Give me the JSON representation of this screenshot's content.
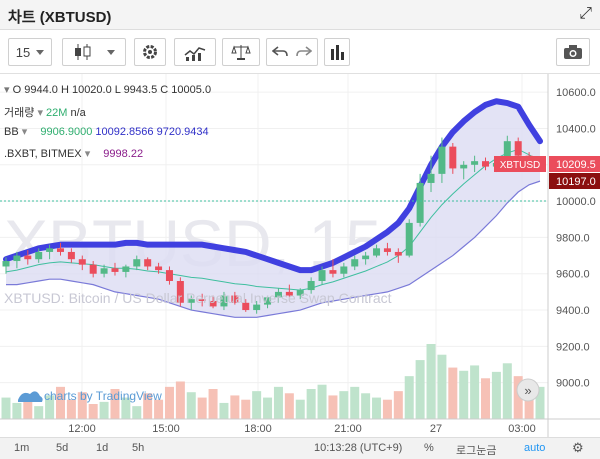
{
  "window": {
    "title": "차트 (XBTUSD)"
  },
  "toolbar": {
    "interval": "15"
  },
  "legend": {
    "ohlc": {
      "o_label": "O",
      "o": "9944.0",
      "h_label": "H",
      "h": "10020.0",
      "l_label": "L",
      "l": "9943.5",
      "c_label": "C",
      "c": "10005.0"
    },
    "volume": {
      "label": "거래량",
      "value": "22M",
      "extra": "n/a"
    },
    "bb": {
      "label": "BB",
      "basis": "9906.9000",
      "upper": "10092.8566",
      "lower": "9720.9434"
    },
    "bxbt": {
      "label": ".BXBT, BITMEX",
      "value": "9998.22"
    }
  },
  "watermark": {
    "symbol": "XBTUSD, 15",
    "description": "XBTUSD: Bitcoin / US Dollar Perpetual Inverse Swap Contract"
  },
  "branding": {
    "text": "charts by TradingView"
  },
  "price_tags": {
    "symbol_label": "XBTUSD",
    "last": "10209.5",
    "index": "10197.0"
  },
  "bottombar": {
    "ranges": [
      "1m",
      "5d",
      "1d",
      "5h"
    ],
    "time": "10:13:28 (UTC+9)",
    "percent": "%",
    "log": "로그눈금",
    "auto": "auto"
  },
  "colors": {
    "up": "#53b987",
    "down": "#eb4d5c",
    "band_fill": "#dcdcf3",
    "band_line": "#7a7ad8",
    "thick_line": "#4040e0",
    "basis": "#3fbf9f"
  },
  "chart_data": {
    "type": "candlestick",
    "y_ticks": [
      9000,
      9200,
      9400,
      9600,
      9800,
      10000,
      10200,
      10400,
      10600
    ],
    "x_ticks": [
      "12:00",
      "15:00",
      "18:00",
      "21:00",
      "27",
      "03:00"
    ],
    "ylim": [
      8800,
      10700
    ],
    "candles": [
      [
        9640,
        9690,
        9600,
        9670
      ],
      [
        9670,
        9720,
        9630,
        9700
      ],
      [
        9700,
        9730,
        9650,
        9680
      ],
      [
        9680,
        9740,
        9660,
        9720
      ],
      [
        9720,
        9760,
        9680,
        9740
      ],
      [
        9740,
        9770,
        9700,
        9720
      ],
      [
        9720,
        9740,
        9660,
        9680
      ],
      [
        9680,
        9700,
        9620,
        9650
      ],
      [
        9650,
        9670,
        9580,
        9600
      ],
      [
        9600,
        9650,
        9580,
        9630
      ],
      [
        9630,
        9660,
        9590,
        9610
      ],
      [
        9610,
        9650,
        9580,
        9640
      ],
      [
        9640,
        9700,
        9620,
        9680
      ],
      [
        9680,
        9690,
        9620,
        9640
      ],
      [
        9640,
        9660,
        9600,
        9620
      ],
      [
        9620,
        9640,
        9540,
        9560
      ],
      [
        9560,
        9580,
        9420,
        9440
      ],
      [
        9440,
        9480,
        9400,
        9460
      ],
      [
        9460,
        9490,
        9420,
        9450
      ],
      [
        9450,
        9480,
        9410,
        9420
      ],
      [
        9420,
        9500,
        9400,
        9480
      ],
      [
        9480,
        9500,
        9430,
        9440
      ],
      [
        9440,
        9460,
        9390,
        9400
      ],
      [
        9400,
        9450,
        9380,
        9430
      ],
      [
        9430,
        9480,
        9410,
        9470
      ],
      [
        9470,
        9520,
        9440,
        9500
      ],
      [
        9500,
        9540,
        9470,
        9480
      ],
      [
        9480,
        9520,
        9460,
        9510
      ],
      [
        9510,
        9580,
        9490,
        9560
      ],
      [
        9560,
        9640,
        9540,
        9620
      ],
      [
        9620,
        9680,
        9580,
        9600
      ],
      [
        9600,
        9660,
        9580,
        9640
      ],
      [
        9640,
        9700,
        9620,
        9680
      ],
      [
        9680,
        9720,
        9650,
        9700
      ],
      [
        9700,
        9760,
        9690,
        9740
      ],
      [
        9740,
        9770,
        9700,
        9720
      ],
      [
        9720,
        9740,
        9660,
        9700
      ],
      [
        9700,
        9900,
        9690,
        9880
      ],
      [
        9880,
        10150,
        9860,
        10100
      ],
      [
        10100,
        10250,
        10050,
        10150
      ],
      [
        10150,
        10350,
        10100,
        10300
      ],
      [
        10300,
        10320,
        10150,
        10180
      ],
      [
        10180,
        10220,
        10120,
        10200
      ],
      [
        10200,
        10250,
        10160,
        10220
      ],
      [
        10220,
        10240,
        10170,
        10190
      ],
      [
        10190,
        10230,
        10160,
        10210
      ],
      [
        10210,
        10360,
        10200,
        10330
      ],
      [
        10330,
        10350,
        10220,
        10250
      ],
      [
        10250,
        10270,
        10180,
        10200
      ],
      [
        10200,
        10240,
        10170,
        10210
      ]
    ],
    "volumes": [
      20,
      15,
      18,
      12,
      22,
      30,
      18,
      25,
      14,
      16,
      28,
      20,
      12,
      24,
      18,
      30,
      35,
      25,
      20,
      28,
      15,
      22,
      18,
      26,
      20,
      30,
      24,
      18,
      28,
      32,
      22,
      26,
      30,
      24,
      20,
      18,
      26,
      40,
      55,
      70,
      60,
      48,
      45,
      50,
      38,
      44,
      52,
      40,
      35,
      30
    ],
    "bb_upper": [
      9680,
      9700,
      9720,
      9740,
      9750,
      9760,
      9760,
      9760,
      9760,
      9760,
      9760,
      9770,
      9770,
      9760,
      9760,
      9760,
      9760,
      9760,
      9760,
      9750,
      9740,
      9730,
      9720,
      9700,
      9680,
      9660,
      9640,
      9620,
      9620,
      9640,
      9660,
      9690,
      9720,
      9750,
      9790,
      9830,
      9880,
      9960,
      10080,
      10200,
      10300,
      10380,
      10440,
      10490,
      10530,
      10550,
      10540,
      10520,
      10420,
      10330
    ],
    "bb_lower": [
      9540,
      9540,
      9550,
      9560,
      9570,
      9570,
      9560,
      9550,
      9540,
      9520,
      9500,
      9490,
      9480,
      9470,
      9460,
      9440,
      9420,
      9400,
      9390,
      9380,
      9370,
      9360,
      9360,
      9360,
      9370,
      9380,
      9390,
      9400,
      9420,
      9440,
      9450,
      9460,
      9470,
      9480,
      9490,
      9500,
      9520,
      9540,
      9580,
      9620,
      9660,
      9700,
      9750,
      9800,
      9860,
      9920,
      9990,
      10050,
      10090,
      10110
    ],
    "bb_basis": [
      9610,
      9620,
      9635,
      9650,
      9660,
      9665,
      9660,
      9655,
      9650,
      9640,
      9630,
      9630,
      9625,
      9615,
      9610,
      9600,
      9590,
      9580,
      9575,
      9565,
      9555,
      9545,
      9540,
      9530,
      9525,
      9520,
      9515,
      9510,
      9520,
      9540,
      9555,
      9575,
      9595,
      9615,
      9640,
      9665,
      9700,
      9750,
      9830,
      9910,
      9980,
      10040,
      10095,
      10145,
      10195,
      10235,
      10265,
      10285,
      10255,
      10220
    ]
  }
}
